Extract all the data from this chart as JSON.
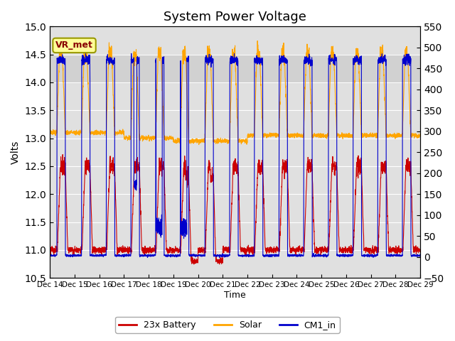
{
  "title": "System Power Voltage",
  "xlabel": "Time",
  "ylabel": "Volts",
  "ylim_left": [
    10.5,
    15.0
  ],
  "ylim_right": [
    -50,
    550
  ],
  "yticks_left": [
    10.5,
    11.0,
    11.5,
    12.0,
    12.5,
    13.0,
    13.5,
    14.0,
    14.5,
    15.0
  ],
  "yticks_right": [
    -50,
    0,
    50,
    100,
    150,
    200,
    250,
    300,
    350,
    400,
    450,
    500,
    550
  ],
  "xtick_positions": [
    0,
    1,
    2,
    3,
    4,
    5,
    6,
    7,
    8,
    9,
    10,
    11,
    12,
    13,
    14,
    15
  ],
  "xtick_labels": [
    "Dec 14",
    "Dec 15",
    "Dec 16",
    "Dec 17",
    "Dec 18",
    "Dec 19",
    "Dec 20",
    "Dec 21",
    "Dec 22",
    "Dec 23",
    "Dec 24",
    "Dec 25",
    "Dec 26",
    "Dec 27",
    "Dec 28",
    "Dec 29"
  ],
  "xlim": [
    0,
    15
  ],
  "background_color": "#ffffff",
  "plot_bg_color": "#e0e0e0",
  "grid_color": "#ffffff",
  "vr_met_label": "VR_met",
  "vr_met_bg": "#ffff99",
  "vr_met_border": "#999900",
  "vr_met_text_color": "#880000",
  "legend_labels": [
    "23x Battery",
    "Solar",
    "CM1_in"
  ],
  "legend_colors": [
    "#cc0000",
    "#ffa500",
    "#0000cc"
  ],
  "title_fontsize": 13,
  "n_days": 15,
  "points_per_day": 200
}
